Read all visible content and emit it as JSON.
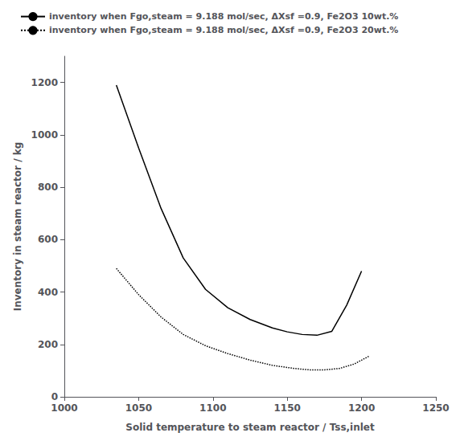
{
  "chart_data": {
    "type": "line",
    "xlabel": "Solid temperature to steam reactor / Tss,inlet",
    "ylabel": "Inventory in steam reactor / kg",
    "series": [
      {
        "name": "inventory when Fgo,steam = 9.188 mol/sec, ΔXsf =0.9, Fe2O3 10wt.%",
        "color": "#000000",
        "line_style": "solid",
        "x": [
          1035,
          1050,
          1065,
          1080,
          1095,
          1110,
          1125,
          1140,
          1150,
          1160,
          1170,
          1180,
          1190,
          1200
        ],
        "values": [
          1190,
          950,
          720,
          530,
          410,
          340,
          295,
          263,
          248,
          238,
          235,
          250,
          350,
          480
        ]
      },
      {
        "name": "inventory when Fgo,steam = 9.188 mol/sec, ΔXsf =0.9, Fe2O3 20wt.%",
        "color": "#000000",
        "line_style": "dotted",
        "x": [
          1035,
          1050,
          1065,
          1080,
          1095,
          1110,
          1125,
          1140,
          1155,
          1165,
          1175,
          1185,
          1195,
          1205
        ],
        "values": [
          490,
          390,
          305,
          238,
          195,
          165,
          140,
          120,
          108,
          103,
          103,
          108,
          125,
          155
        ]
      }
    ],
    "xlim": [
      1000,
      1250
    ],
    "ylim": [
      0,
      1300
    ],
    "xticks": [
      1000,
      1050,
      1100,
      1150,
      1200,
      1250
    ],
    "yticks": [
      0,
      200,
      400,
      600,
      800,
      1000,
      1200
    ],
    "grid": false,
    "legend": "top"
  }
}
